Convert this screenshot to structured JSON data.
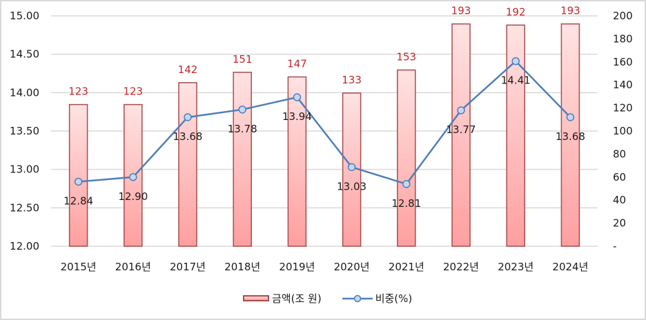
{
  "chart_data": {
    "type": "bar+line",
    "title": "",
    "categories": [
      "2015년",
      "2016년",
      "2017년",
      "2018년",
      "2019년",
      "2020년",
      "2021년",
      "2022년",
      "2023년",
      "2024년"
    ],
    "series": [
      {
        "name": "금액(조 원)",
        "type": "bar",
        "axis": "right",
        "values": [
          123,
          123,
          142,
          151,
          147,
          133,
          153,
          193,
          192,
          193
        ],
        "color": "#ffb3b3",
        "border": "#a94b4b",
        "label_color": "#c0282d"
      },
      {
        "name": "비중(%)",
        "type": "line",
        "axis": "left",
        "values": [
          12.84,
          12.9,
          13.68,
          13.78,
          13.94,
          13.03,
          12.81,
          13.77,
          14.41,
          13.68
        ],
        "color": "#4f7fba",
        "marker_fill": "#c5d7f2"
      }
    ],
    "left_axis": {
      "ylim": [
        12.0,
        15.0
      ],
      "ticks": [
        "12.00",
        "12.50",
        "13.00",
        "13.50",
        "14.00",
        "14.50",
        "15.00"
      ]
    },
    "right_axis": {
      "ylim": [
        0,
        200
      ],
      "ticks": [
        "-",
        "20",
        "40",
        "60",
        "80",
        "100",
        "120",
        "140",
        "160",
        "180",
        "200"
      ]
    },
    "grid": true,
    "legend_position": "bottom"
  },
  "legend": {
    "bar_label": "금액(조 원)",
    "line_label": "비중(%)"
  }
}
